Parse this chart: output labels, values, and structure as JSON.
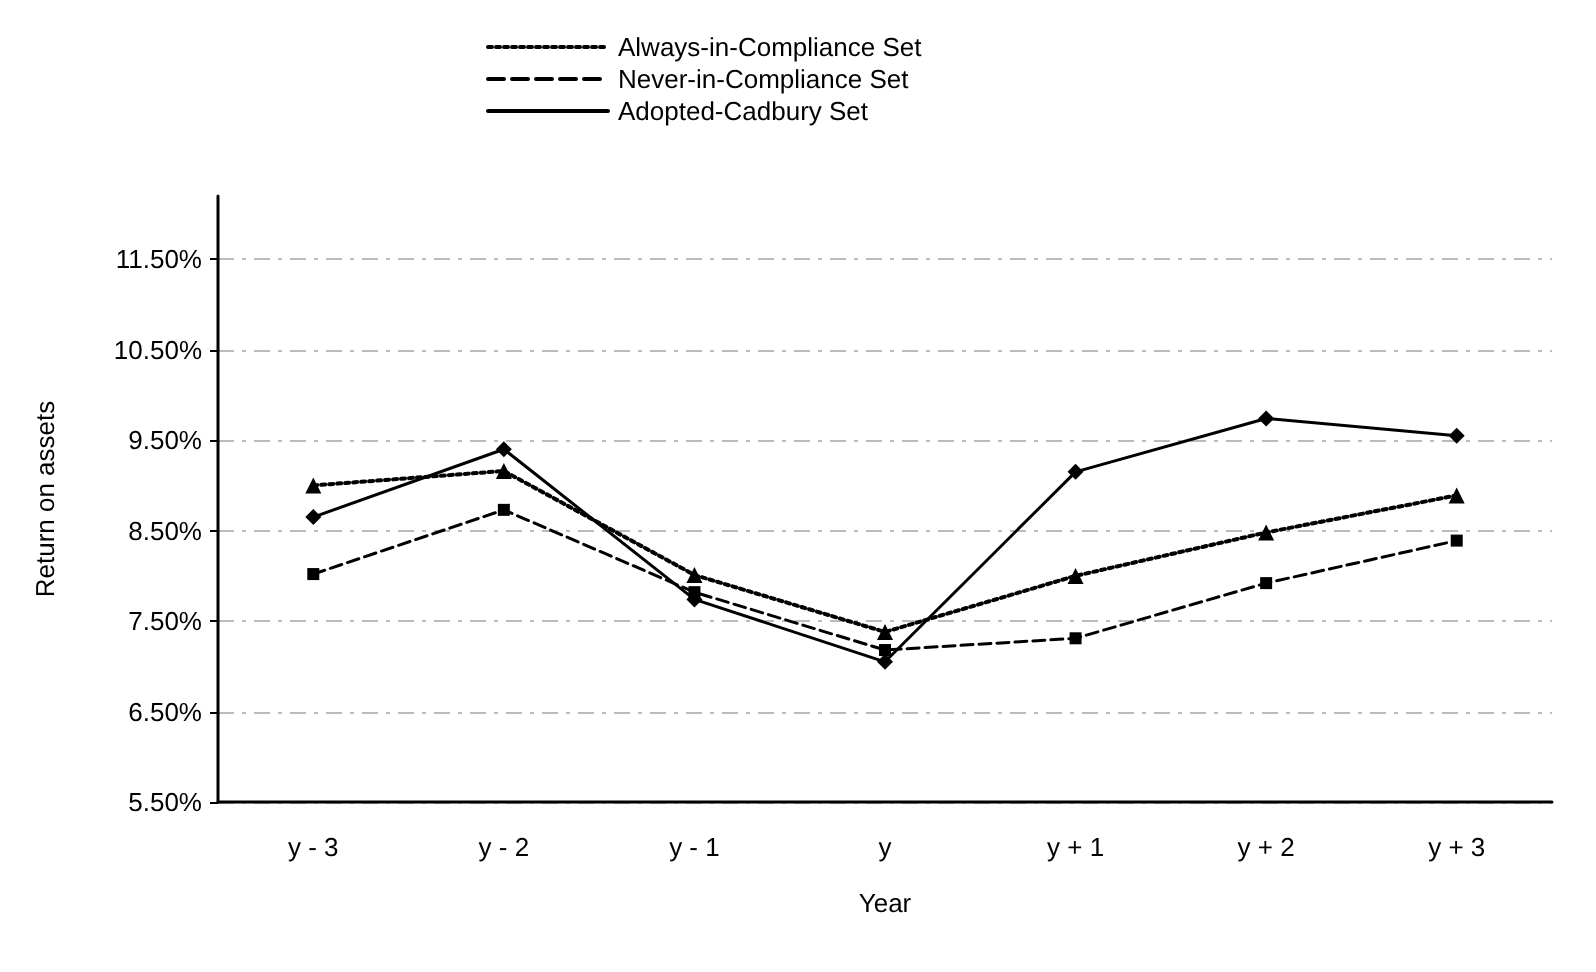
{
  "chart_data": {
    "type": "line",
    "xlabel": "Year",
    "ylabel": "Return on assets",
    "categories": [
      "y - 3",
      "y - 2",
      "y - 1",
      "y",
      "y + 1",
      "y + 2",
      "y + 3"
    ],
    "series": [
      {
        "name": "Always-in-Compliance Set",
        "color": "#000000",
        "marker": "triangle",
        "line_style": "dotted",
        "values": [
          9.0,
          9.16,
          8.01,
          7.38,
          8.0,
          8.48,
          8.89
        ]
      },
      {
        "name": "Never-in-Compliance Set",
        "color": "#000000",
        "marker": "square",
        "line_style": "dashed",
        "values": [
          8.02,
          8.73,
          7.82,
          7.18,
          7.31,
          7.92,
          8.39
        ]
      },
      {
        "name": "Adopted-Cadbury Set",
        "color": "#000000",
        "marker": "diamond",
        "line_style": "solid",
        "values": [
          8.65,
          9.4,
          7.74,
          7.05,
          9.15,
          9.74,
          9.55
        ]
      }
    ],
    "ylim": [
      5.5,
      12.2
    ],
    "yticks": [
      {
        "value": 5.5,
        "label": "5.50%"
      },
      {
        "value": 6.5,
        "label": "6.50%"
      },
      {
        "value": 7.5,
        "label": "7.50%"
      },
      {
        "value": 8.5,
        "label": "8.50%"
      },
      {
        "value": 9.5,
        "label": "9.50%"
      },
      {
        "value": 10.5,
        "label": "10.50%"
      },
      {
        "value": 11.5,
        "label": "11.50%"
      }
    ],
    "grid": "y",
    "legend": "top"
  }
}
